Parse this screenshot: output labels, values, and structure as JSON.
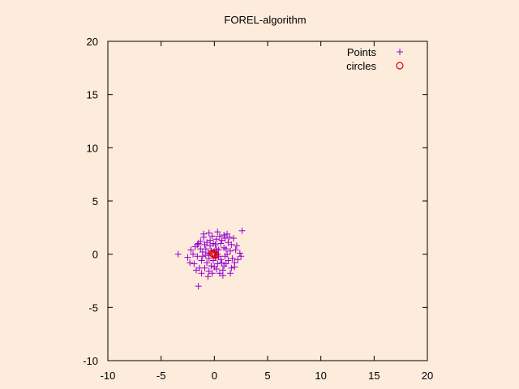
{
  "chart_data": {
    "type": "scatter",
    "title": "FOREL-algorithm",
    "xlabel": "",
    "ylabel": "",
    "xlim": [
      -10,
      20
    ],
    "ylim": [
      -10,
      20
    ],
    "xticks": [
      -10,
      -5,
      0,
      5,
      10,
      15,
      20
    ],
    "yticks": [
      -10,
      -5,
      0,
      5,
      10,
      15,
      20
    ],
    "xtick_labels": [
      "-10",
      "-5",
      "0",
      "5",
      "10",
      "15",
      "20"
    ],
    "ytick_labels": [
      "-10",
      "-5",
      "0",
      "5",
      "10",
      "15",
      "20"
    ],
    "grid": false,
    "legend_position": "top-right",
    "background_color": "#fdebdc",
    "series": [
      {
        "name": "Points",
        "marker": "plus",
        "color": "#9400d3",
        "points": [
          [
            -3.4,
            0.0
          ],
          [
            -1.5,
            -3.0
          ],
          [
            2.6,
            2.2
          ],
          [
            2.4,
            0.1
          ],
          [
            2.5,
            -0.2
          ],
          [
            -2.5,
            -0.3
          ],
          [
            -2.2,
            0.4
          ],
          [
            1.8,
            1.5
          ],
          [
            1.6,
            -1.3
          ],
          [
            -1.2,
            -1.8
          ],
          [
            0.8,
            -2.0
          ],
          [
            -0.5,
            2.0
          ],
          [
            0.3,
            2.1
          ],
          [
            1.2,
            1.9
          ],
          [
            -1.9,
            -0.9
          ],
          [
            2.1,
            0.8
          ],
          [
            -1.3,
            1.2
          ],
          [
            1.9,
            -0.8
          ],
          [
            -0.2,
            -1.8
          ],
          [
            0.5,
            1.7
          ],
          [
            -0.9,
            0.9
          ],
          [
            1.1,
            -0.9
          ],
          [
            -1.6,
            -0.2
          ],
          [
            1.5,
            0.3
          ],
          [
            0.2,
            -1.4
          ],
          [
            -0.4,
            1.3
          ],
          [
            0.9,
            0.6
          ],
          [
            -0.7,
            -0.8
          ],
          [
            0.6,
            -0.5
          ],
          [
            -1.1,
            0.2
          ],
          [
            1.3,
            1.1
          ],
          [
            -0.3,
            -1.1
          ],
          [
            0.1,
            0.9
          ],
          [
            -0.8,
            0.5
          ],
          [
            0.4,
            0.4
          ],
          [
            -0.5,
            -0.4
          ],
          [
            1.0,
            -0.2
          ],
          [
            -1.4,
            -1.3
          ],
          [
            0.7,
            1.3
          ],
          [
            -0.1,
            -0.6
          ],
          [
            0.0,
            0.2
          ],
          [
            -0.6,
            0.1
          ],
          [
            1.7,
            -0.4
          ],
          [
            -1.8,
            0.7
          ],
          [
            0.3,
            -0.9
          ],
          [
            1.4,
            1.6
          ],
          [
            -1.0,
            1.6
          ],
          [
            0.8,
            -1.5
          ],
          [
            -0.2,
            1.7
          ],
          [
            2.0,
            0.4
          ],
          [
            -2.0,
            0.0
          ],
          [
            0.5,
            -1.8
          ],
          [
            -1.2,
            -0.6
          ],
          [
            1.2,
            0.0
          ],
          [
            -0.4,
            0.8
          ],
          [
            0.2,
            0.5
          ],
          [
            0.9,
            -1.1
          ],
          [
            -0.9,
            -1.3
          ],
          [
            1.6,
            0.9
          ],
          [
            -1.5,
            1.0
          ],
          [
            0.0,
            -1.2
          ],
          [
            0.6,
            1.0
          ],
          [
            -0.7,
            1.1
          ],
          [
            1.1,
            0.5
          ],
          [
            -0.3,
            0.3
          ],
          [
            0.4,
            -0.2
          ],
          [
            -1.1,
            -0.2
          ],
          [
            1.9,
            -1.2
          ],
          [
            -1.7,
            -1.5
          ],
          [
            0.2,
            1.4
          ],
          [
            -0.5,
            -1.6
          ],
          [
            1.0,
            1.5
          ],
          [
            -1.3,
            0.5
          ],
          [
            0.7,
            -0.8
          ],
          [
            -0.1,
            1.0
          ],
          [
            0.3,
            0.0
          ],
          [
            -0.8,
            -0.1
          ],
          [
            1.3,
            -0.6
          ],
          [
            -1.6,
            0.9
          ],
          [
            0.1,
            -0.3
          ],
          [
            2.2,
            -0.5
          ],
          [
            -2.3,
            -0.8
          ],
          [
            0.9,
            1.8
          ],
          [
            -0.6,
            -2.1
          ],
          [
            1.5,
            -1.8
          ],
          [
            -1.0,
            1.9
          ]
        ]
      },
      {
        "name": "circles",
        "marker": "circle",
        "color": "#dd0000",
        "points": [
          [
            -0.2,
            0.1
          ],
          [
            0.1,
            -0.1
          ],
          [
            -0.1,
            0.0
          ],
          [
            0.0,
            0.1
          ]
        ]
      }
    ]
  }
}
